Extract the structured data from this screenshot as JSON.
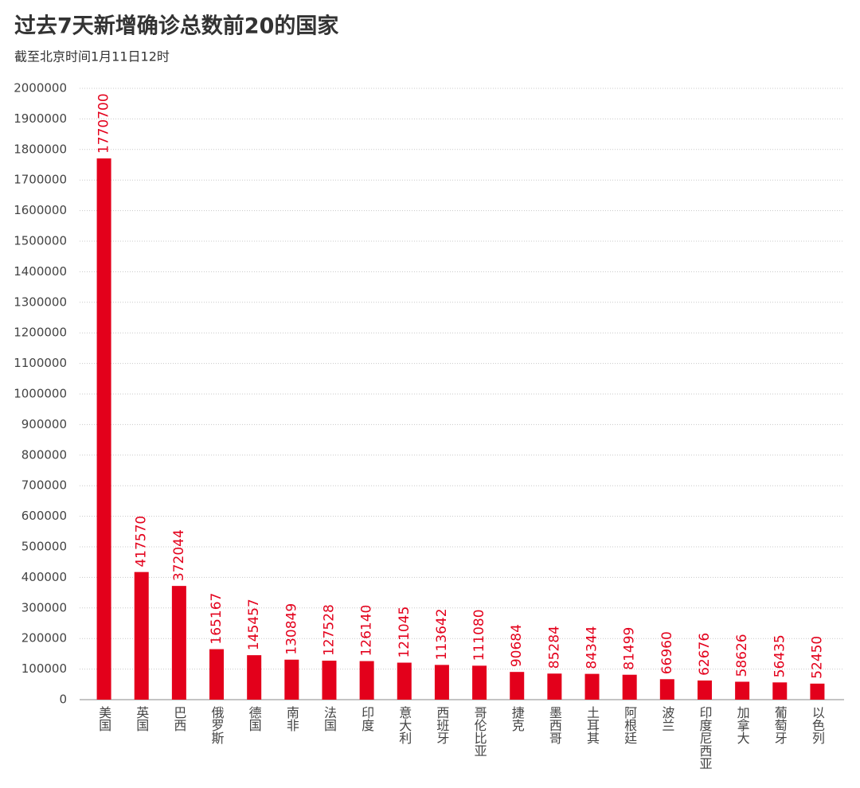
{
  "chart_data": {
    "type": "bar",
    "title": "过去7天新增确诊总数前20的国家",
    "subtitle": "截至北京时间1月11日12时",
    "categories": [
      "美国",
      "英国",
      "巴西",
      "俄罗斯",
      "德国",
      "南非",
      "法国",
      "印度",
      "意大利",
      "西班牙",
      "哥伦比亚",
      "捷克",
      "墨西哥",
      "土耳其",
      "阿根廷",
      "波兰",
      "印度尼西亚",
      "加拿大",
      "葡萄牙",
      "以色列"
    ],
    "values": [
      1770700,
      417570,
      372044,
      165167,
      145457,
      130849,
      127528,
      126140,
      121045,
      113642,
      111080,
      90684,
      85284,
      84344,
      81499,
      66960,
      62676,
      58626,
      56435,
      52450
    ],
    "color": "#e3001b",
    "ylim": [
      0,
      2000000
    ],
    "yticks": [
      0,
      100000,
      200000,
      300000,
      400000,
      500000,
      600000,
      700000,
      800000,
      900000,
      1000000,
      1100000,
      1200000,
      1300000,
      1400000,
      1500000,
      1600000,
      1700000,
      1800000,
      1900000,
      2000000
    ],
    "grid": true
  }
}
